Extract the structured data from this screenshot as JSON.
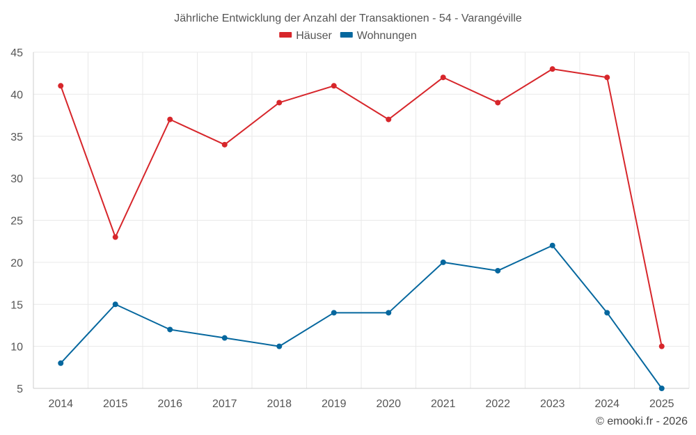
{
  "chart_data": {
    "type": "line",
    "title": "Jährliche Entwicklung der Anzahl der Transaktionen - 54 - Varangéville",
    "categories": [
      "2014",
      "2015",
      "2016",
      "2017",
      "2018",
      "2019",
      "2020",
      "2021",
      "2022",
      "2023",
      "2024",
      "2025"
    ],
    "series": [
      {
        "name": "Häuser",
        "color": "#d7262b",
        "values": [
          41,
          23,
          37,
          34,
          39,
          41,
          37,
          42,
          39,
          43,
          42,
          10
        ]
      },
      {
        "name": "Wohnungen",
        "color": "#05679e",
        "values": [
          8,
          15,
          12,
          11,
          10,
          14,
          14,
          20,
          19,
          22,
          14,
          5
        ]
      }
    ],
    "ylim": [
      5,
      45
    ],
    "yticks": [
      5,
      10,
      15,
      20,
      25,
      30,
      35,
      40,
      45
    ],
    "xlabel": "",
    "ylabel": "",
    "legend": "top-center",
    "grid": true
  },
  "credit": "© emooki.fr - 2026"
}
